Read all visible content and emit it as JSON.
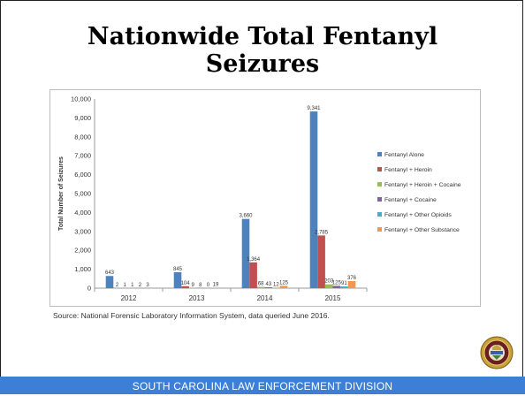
{
  "slide": {
    "title_line1": "Nationwide Total Fentanyl",
    "title_line2": "Seizures",
    "source": "Source:  National Forensic Laboratory Information System, data queried June 2016.",
    "footer": "SOUTH CAROLINA LAW ENFORCEMENT DIVISION"
  },
  "chart_data": {
    "type": "bar",
    "title": "",
    "xlabel": "",
    "ylabel": "Total Number of Seizures",
    "ylim": [
      0,
      10000
    ],
    "yticks": [
      0,
      1000,
      2000,
      3000,
      4000,
      5000,
      6000,
      7000,
      8000,
      9000,
      10000
    ],
    "ytick_labels": [
      "0",
      "1,000",
      "2,000",
      "3,000",
      "4,000",
      "5,000",
      "6,000",
      "7,000",
      "8,000",
      "9,000",
      "10,000"
    ],
    "grid": false,
    "legend": "right",
    "categories": [
      "2012",
      "2013",
      "2014",
      "2015"
    ],
    "series": [
      {
        "name": "Fentanyl Alone",
        "color": "#4f81bd",
        "values": [
          643,
          845,
          3660,
          9341
        ],
        "labels": [
          "643",
          "845",
          "3,660",
          "9,341"
        ]
      },
      {
        "name": "Fentanyl + Heroin",
        "color": "#c0504d",
        "values": [
          2,
          104,
          1364,
          2785
        ],
        "labels": [
          "2",
          "104",
          "1,364",
          "2,785"
        ]
      },
      {
        "name": "Fentanyl + Heroin + Cocaine",
        "color": "#9bbb59",
        "values": [
          1,
          9,
          68,
          203
        ],
        "labels": [
          "1",
          "9",
          "68",
          "203"
        ]
      },
      {
        "name": "Fentanyl + Cocaine",
        "color": "#8064a2",
        "values": [
          1,
          8,
          43,
          125
        ],
        "labels": [
          "1",
          "8",
          "43",
          "125"
        ]
      },
      {
        "name": "Fentanyl + Other Opioids",
        "color": "#4bacc6",
        "values": [
          2,
          0,
          12,
          91
        ],
        "labels": [
          "2",
          "0",
          "12",
          "91"
        ]
      },
      {
        "name": "Fentanyl + Other Substance",
        "color": "#f79646",
        "values": [
          3,
          19,
          125,
          376
        ],
        "labels": [
          "3",
          "19",
          "125",
          "376"
        ]
      }
    ]
  },
  "icons": {
    "seal": "sled-badge-icon"
  }
}
